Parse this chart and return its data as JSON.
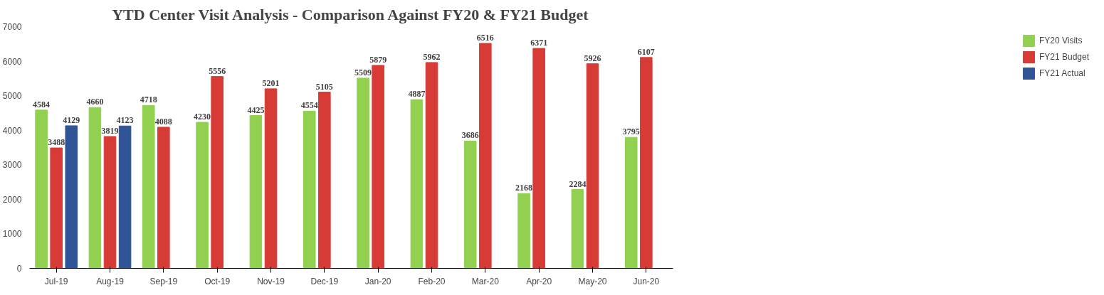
{
  "chart_data": {
    "type": "bar",
    "title": "YTD Center Visit Analysis - Comparison Against FY20 & FY21 Budget",
    "categories": [
      "Jul-19",
      "Aug-19",
      "Sep-19",
      "Oct-19",
      "Nov-19",
      "Dec-19",
      "Jan-20",
      "Feb-20",
      "Mar-20",
      "Apr-20",
      "May-20",
      "Jun-20"
    ],
    "series": [
      {
        "name": "FY20 Visits",
        "color": "#92d050",
        "values": [
          4584,
          4660,
          4718,
          4230,
          4425,
          4554,
          5509,
          4887,
          3686,
          2168,
          2284,
          3795
        ]
      },
      {
        "name": "FY21 Budget",
        "color": "#d73b35",
        "values": [
          3488,
          3819,
          4088,
          5556,
          5201,
          5105,
          5879,
          5962,
          6516,
          6371,
          5926,
          6107
        ]
      },
      {
        "name": "FY21 Actual",
        "color": "#2f5597",
        "values": [
          4129,
          4123,
          null,
          null,
          null,
          null,
          null,
          null,
          null,
          null,
          null,
          null
        ]
      }
    ],
    "ylim": [
      0,
      7000
    ],
    "yticks": [
      0,
      1000,
      2000,
      3000,
      4000,
      5000,
      6000,
      7000
    ],
    "data_labels": true,
    "legend": "right",
    "grid": false
  }
}
